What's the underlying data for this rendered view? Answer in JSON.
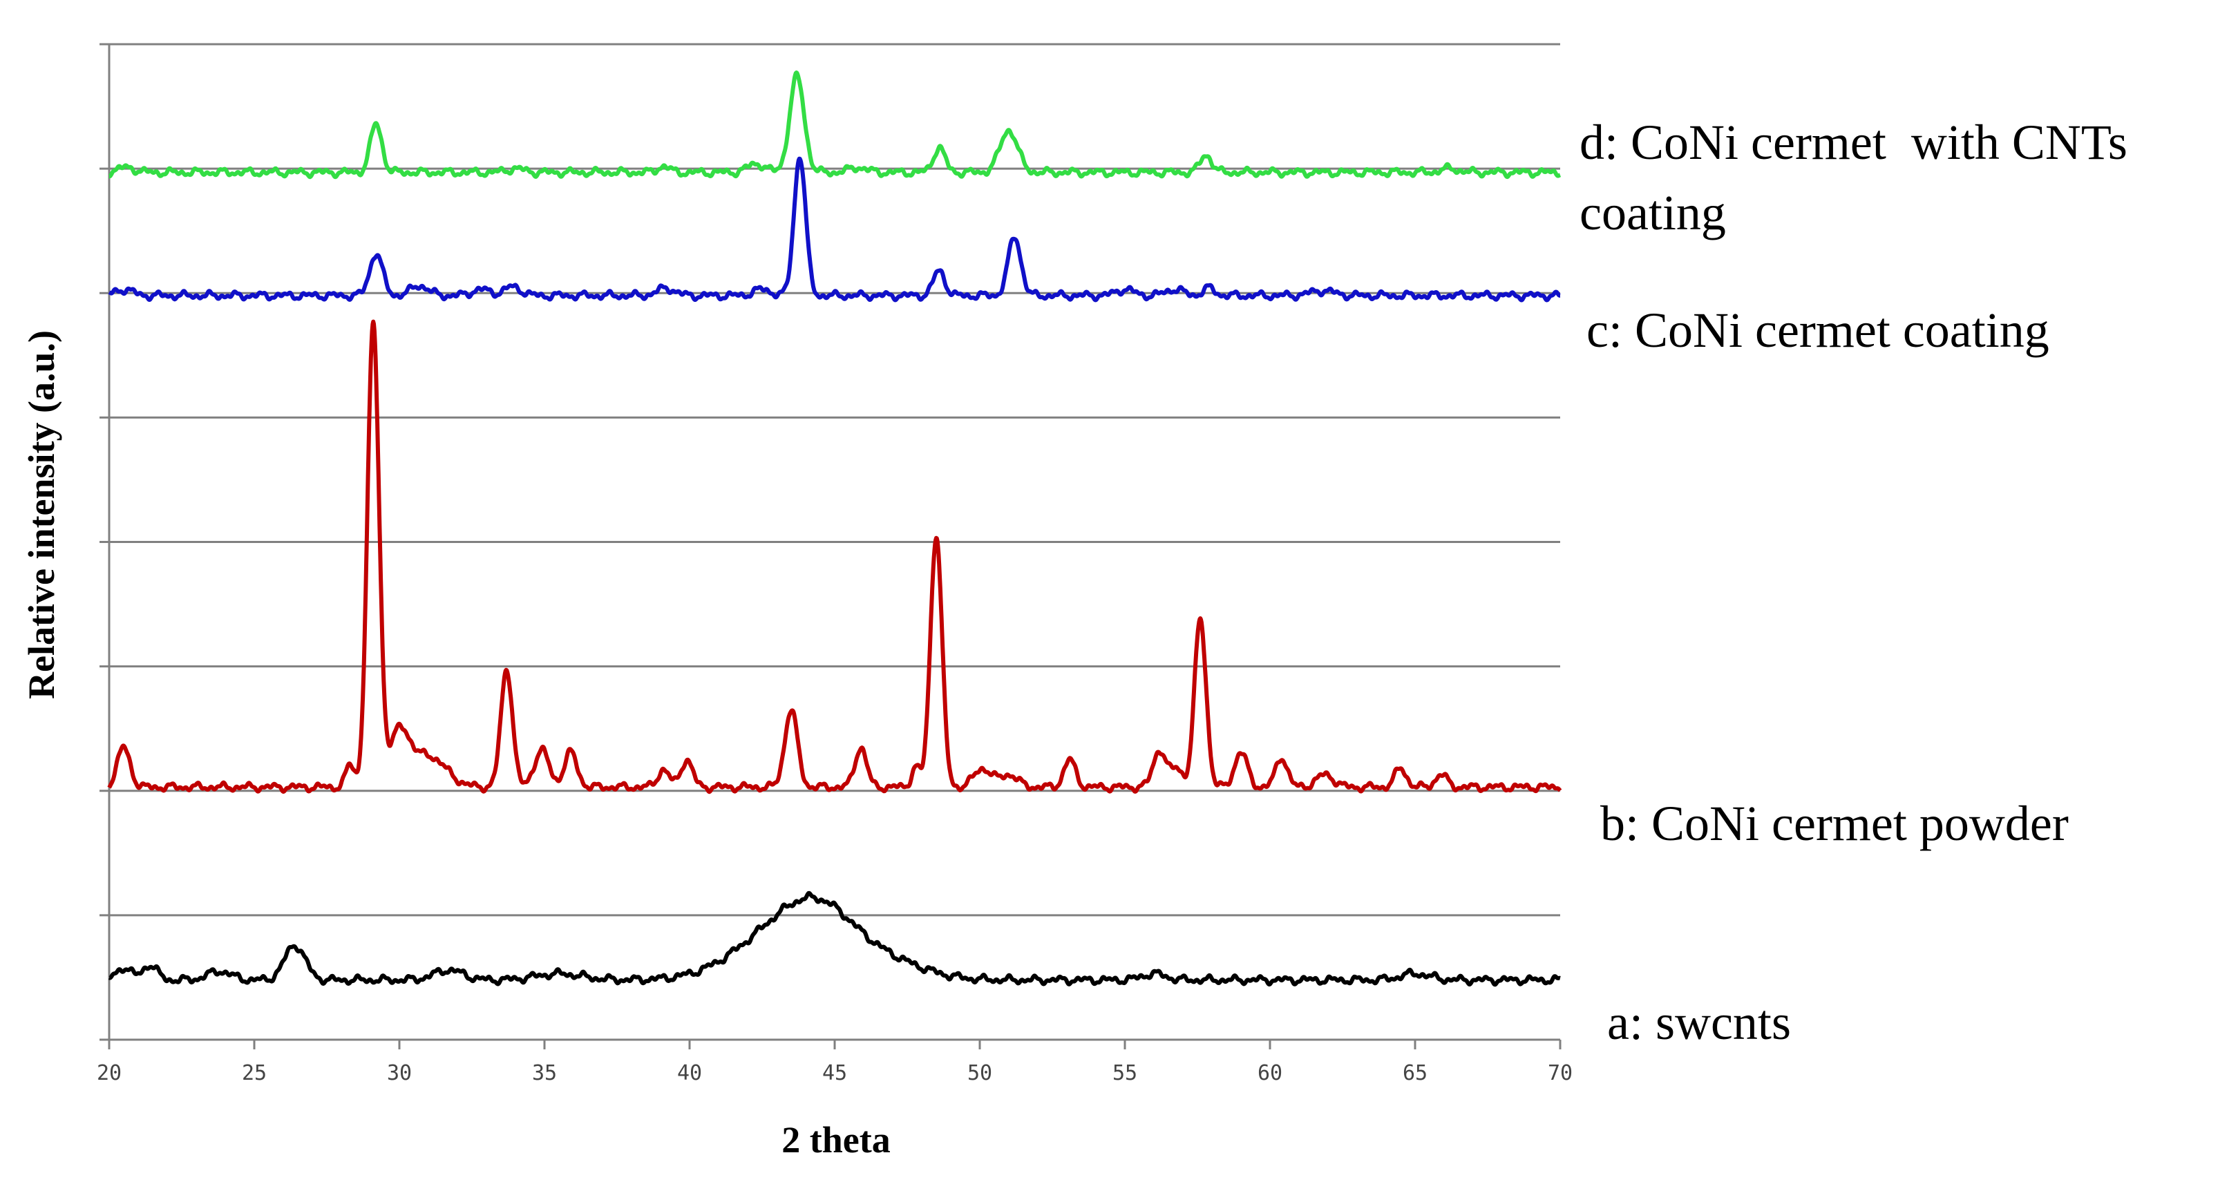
{
  "chart_data": {
    "type": "line",
    "xlabel": "2 theta",
    "ylabel": "Relative intensity (a.u.)",
    "xlim": [
      20,
      70
    ],
    "x_ticks": [
      "20",
      "25",
      "30",
      "35",
      "40",
      "45",
      "50",
      "55",
      "60",
      "65",
      "70"
    ],
    "y_gridlines": 8,
    "grid": "horizontal",
    "legend": "right, inline labels next to each trace",
    "series": [
      {
        "name": "a: swcnts",
        "color": "#000000",
        "baseline": 0.48,
        "peaks": [
          [
            20.5,
            0.1,
            0.25
          ],
          [
            21.4,
            0.12,
            0.25
          ],
          [
            23.8,
            0.07,
            0.4
          ],
          [
            26.4,
            0.28,
            0.35
          ],
          [
            31.7,
            0.08,
            0.5
          ],
          [
            35.5,
            0.05,
            0.8
          ],
          [
            43.2,
            0.38,
            1.6
          ],
          [
            44.6,
            0.35,
            1.2
          ],
          [
            46.8,
            0.14,
            1.3
          ],
          [
            56.0,
            0.05,
            0.4
          ],
          [
            65.0,
            0.05,
            0.5
          ]
        ]
      },
      {
        "name": "b: CoNi cermet powder",
        "color": "#c00000",
        "baseline": 2.03,
        "peaks": [
          [
            20.5,
            0.32,
            0.22
          ],
          [
            28.3,
            0.18,
            0.15
          ],
          [
            29.1,
            3.7,
            0.2
          ],
          [
            30.0,
            0.42,
            0.35
          ],
          [
            31.0,
            0.25,
            0.6
          ],
          [
            33.7,
            0.95,
            0.2
          ],
          [
            34.9,
            0.3,
            0.25
          ],
          [
            35.9,
            0.28,
            0.22
          ],
          [
            39.1,
            0.14,
            0.2
          ],
          [
            39.9,
            0.22,
            0.2
          ],
          [
            43.5,
            0.62,
            0.22
          ],
          [
            45.9,
            0.32,
            0.2
          ],
          [
            47.8,
            0.16,
            0.15
          ],
          [
            48.5,
            2.03,
            0.2
          ],
          [
            50.1,
            0.15,
            0.3
          ],
          [
            51.0,
            0.1,
            0.3
          ],
          [
            53.1,
            0.22,
            0.2
          ],
          [
            56.2,
            0.3,
            0.22
          ],
          [
            56.8,
            0.15,
            0.2
          ],
          [
            57.6,
            1.35,
            0.2
          ],
          [
            59.0,
            0.28,
            0.22
          ],
          [
            60.4,
            0.24,
            0.2
          ],
          [
            61.9,
            0.1,
            0.3
          ],
          [
            64.5,
            0.15,
            0.2
          ],
          [
            65.9,
            0.1,
            0.2
          ]
        ]
      },
      {
        "name": "c: CoNi cermet coating",
        "color": "#1010c8",
        "baseline": 5.98,
        "peaks": [
          [
            20.5,
            0.05,
            0.3
          ],
          [
            29.2,
            0.34,
            0.22
          ],
          [
            30.7,
            0.08,
            0.3
          ],
          [
            32.8,
            0.05,
            0.3
          ],
          [
            33.9,
            0.07,
            0.3
          ],
          [
            39.2,
            0.06,
            0.3
          ],
          [
            42.5,
            0.05,
            0.3
          ],
          [
            43.8,
            1.12,
            0.2
          ],
          [
            48.6,
            0.2,
            0.2
          ],
          [
            51.2,
            0.47,
            0.22
          ],
          [
            55.0,
            0.05,
            0.3
          ],
          [
            56.7,
            0.05,
            0.3
          ],
          [
            57.9,
            0.06,
            0.2
          ],
          [
            61.8,
            0.04,
            0.4
          ]
        ]
      },
      {
        "name": "d: CoNi cermet  with CNTs coating",
        "color": "#33dd44",
        "baseline": 6.97,
        "peaks": [
          [
            20.6,
            0.04,
            0.3
          ],
          [
            29.2,
            0.39,
            0.2
          ],
          [
            34.0,
            0.03,
            0.3
          ],
          [
            39.1,
            0.05,
            0.2
          ],
          [
            42.3,
            0.07,
            0.3
          ],
          [
            43.7,
            0.77,
            0.25
          ],
          [
            45.8,
            0.04,
            0.3
          ],
          [
            48.6,
            0.2,
            0.2
          ],
          [
            51.0,
            0.34,
            0.3
          ],
          [
            57.8,
            0.14,
            0.2
          ],
          [
            66.2,
            0.03,
            0.3
          ]
        ]
      }
    ]
  }
}
